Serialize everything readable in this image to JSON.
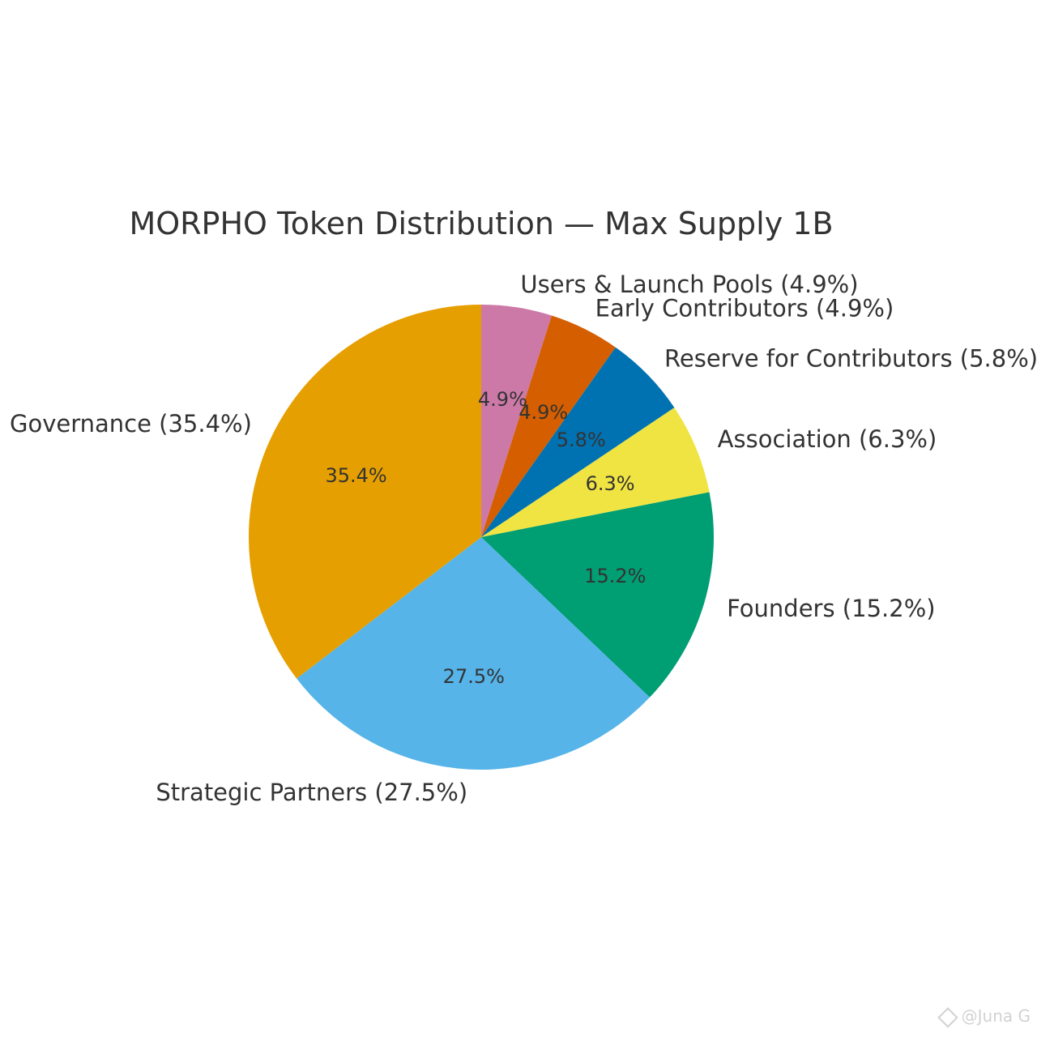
{
  "chart_data": {
    "type": "pie",
    "title": "MORPHO Token Distribution — Max Supply 1B",
    "start_angle_deg": 90,
    "direction": "clockwise",
    "slices": [
      {
        "label": "Users & Launch Pools (4.9%)",
        "value": 4.9,
        "pct_label": "4.9%",
        "color": "#CC79A7"
      },
      {
        "label": "Early Contributors (4.9%)",
        "value": 4.9,
        "pct_label": "4.9%",
        "color": "#D55E00"
      },
      {
        "label": "Reserve for Contributors (5.8%)",
        "value": 5.8,
        "pct_label": "5.8%",
        "color": "#0072B2"
      },
      {
        "label": "Association (6.3%)",
        "value": 6.3,
        "pct_label": "6.3%",
        "color": "#F0E442"
      },
      {
        "label": "Founders (15.2%)",
        "value": 15.2,
        "pct_label": "15.2%",
        "color": "#009E73"
      },
      {
        "label": "Strategic Partners (27.5%)",
        "value": 27.5,
        "pct_label": "27.5%",
        "color": "#56B4E9"
      },
      {
        "label": "Governance (35.4%)",
        "value": 35.4,
        "pct_label": "35.4%",
        "color": "#E69F00"
      }
    ]
  },
  "watermark": {
    "text": "@Juna G",
    "icon": "binance-diamond-icon"
  }
}
